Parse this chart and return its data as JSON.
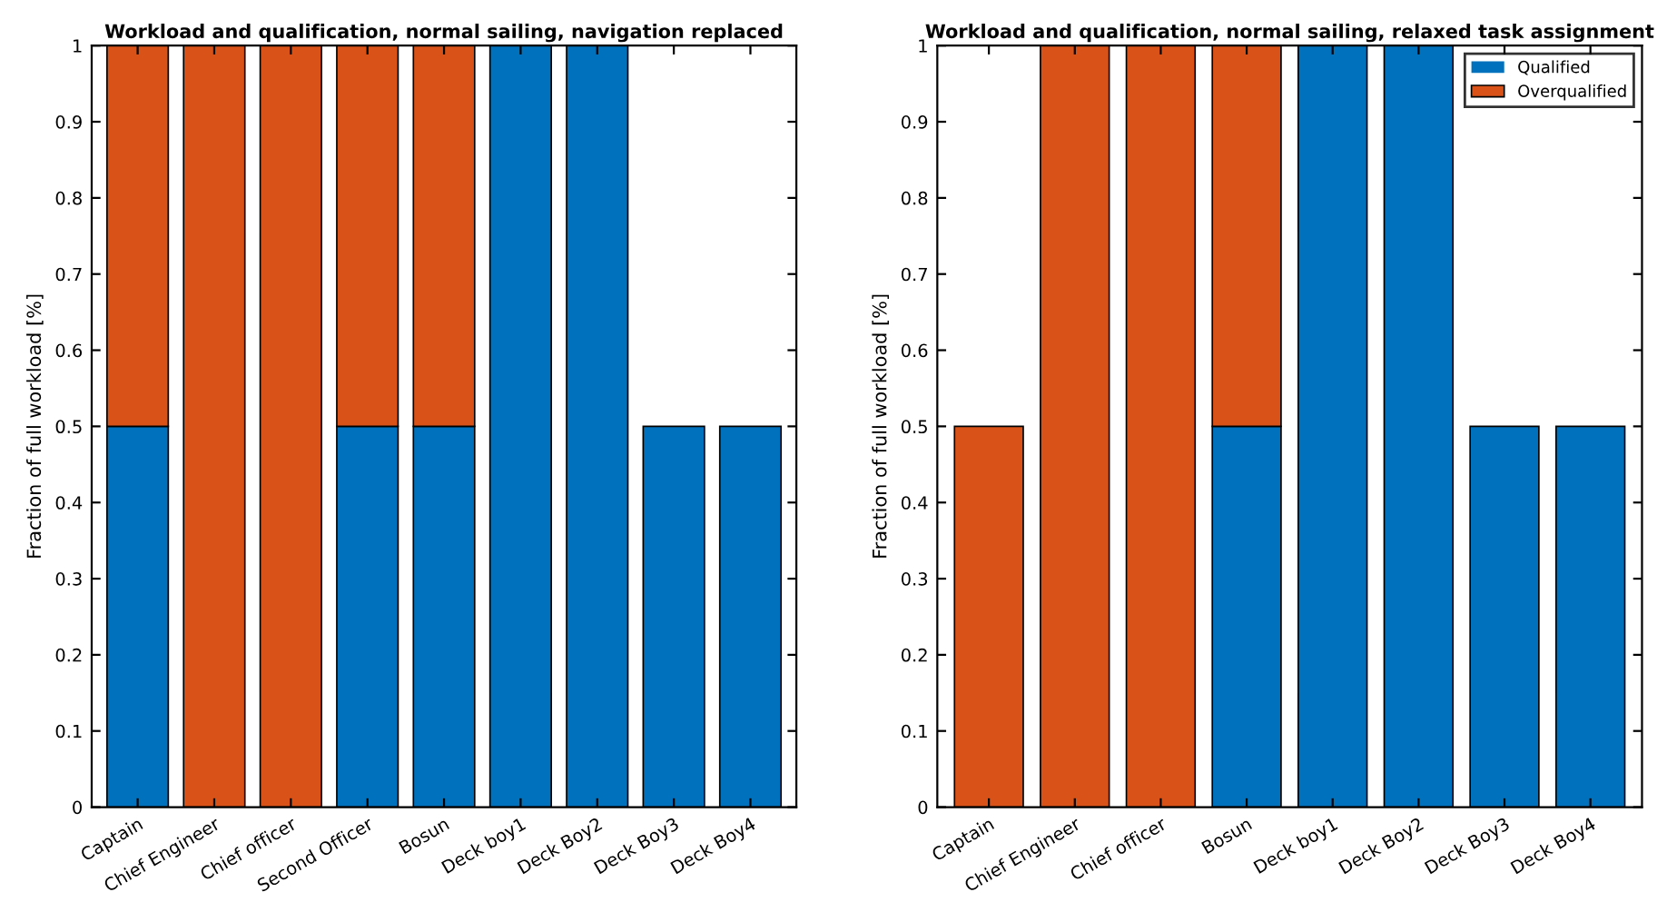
{
  "chart_data": [
    {
      "type": "bar",
      "stacked": true,
      "title": "Workload and qualification, normal sailing, navigation replaced",
      "ylabel": "Fraction of full workload [%]",
      "categories": [
        "Captain",
        "Chief Engineer",
        "Chief officer",
        "Second Officer",
        "Bosun",
        "Deck boy1",
        "Deck Boy2",
        "Deck Boy3",
        "Deck Boy4"
      ],
      "series": [
        {
          "color": "#0072bd",
          "values": [
            0.5,
            0,
            0,
            0.5,
            0.5,
            1,
            1,
            0.5,
            0.5
          ]
        },
        {
          "color": "#d95319",
          "values": [
            0.5,
            1,
            1,
            0.5,
            0.5,
            0,
            0,
            0,
            0
          ]
        }
      ],
      "ylim": [
        0,
        1
      ],
      "yticks": [
        0,
        0.1,
        0.2,
        0.3,
        0.4,
        0.5,
        0.6,
        0.7,
        0.8,
        0.9,
        1
      ],
      "grid": false,
      "legend": false
    },
    {
      "type": "bar",
      "stacked": true,
      "title": "Workload and qualification, normal sailing, relaxed task assignment",
      "ylabel": "Fraction of full workload [%]",
      "categories": [
        "Captain",
        "Chief Engineer",
        "Chief officer",
        "Bosun",
        "Deck boy1",
        "Deck Boy2",
        "Deck Boy3",
        "Deck Boy4"
      ],
      "series": [
        {
          "name": "Qualified",
          "color": "#0072bd",
          "values": [
            0,
            0,
            0,
            0.5,
            1,
            1,
            0.5,
            0.5
          ]
        },
        {
          "name": "Overqualified",
          "color": "#d95319",
          "values": [
            0.5,
            1,
            1,
            0.5,
            0,
            0,
            0,
            0
          ]
        }
      ],
      "ylim": [
        0,
        1
      ],
      "yticks": [
        0,
        0.1,
        0.2,
        0.3,
        0.4,
        0.5,
        0.6,
        0.7,
        0.8,
        0.9,
        1
      ],
      "grid": false,
      "legend": "top right"
    }
  ]
}
